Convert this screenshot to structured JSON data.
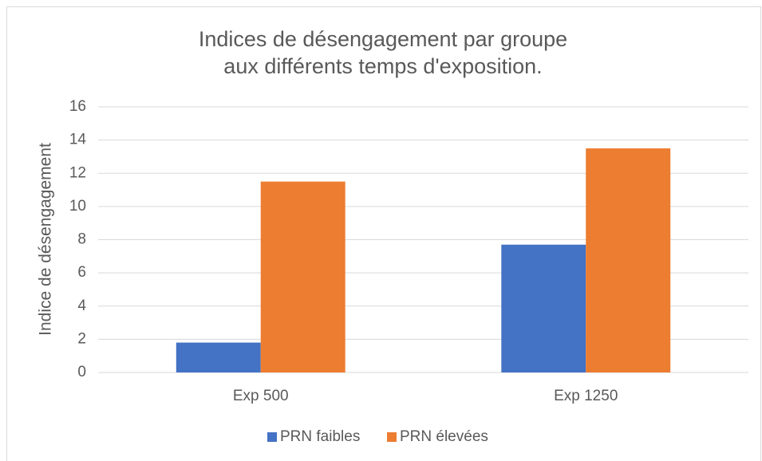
{
  "chart_data": {
    "type": "bar",
    "title": "Indices de désengagement par groupe aux différents temps d'exposition.",
    "y_label": "Indice de désengagement",
    "categories": [
      "Exp 500",
      "Exp 1250"
    ],
    "series": [
      {
        "name": "PRN faibles",
        "color": "#4472c4",
        "values": [
          1.8,
          7.7
        ]
      },
      {
        "name": "PRN élevées",
        "color": "#ed7d31",
        "values": [
          11.5,
          13.5
        ]
      }
    ],
    "ylim": [
      0,
      16
    ],
    "yticks": [
      0,
      2,
      4,
      6,
      8,
      10,
      12,
      14,
      16
    ],
    "grid": true,
    "legend": "bottom"
  }
}
